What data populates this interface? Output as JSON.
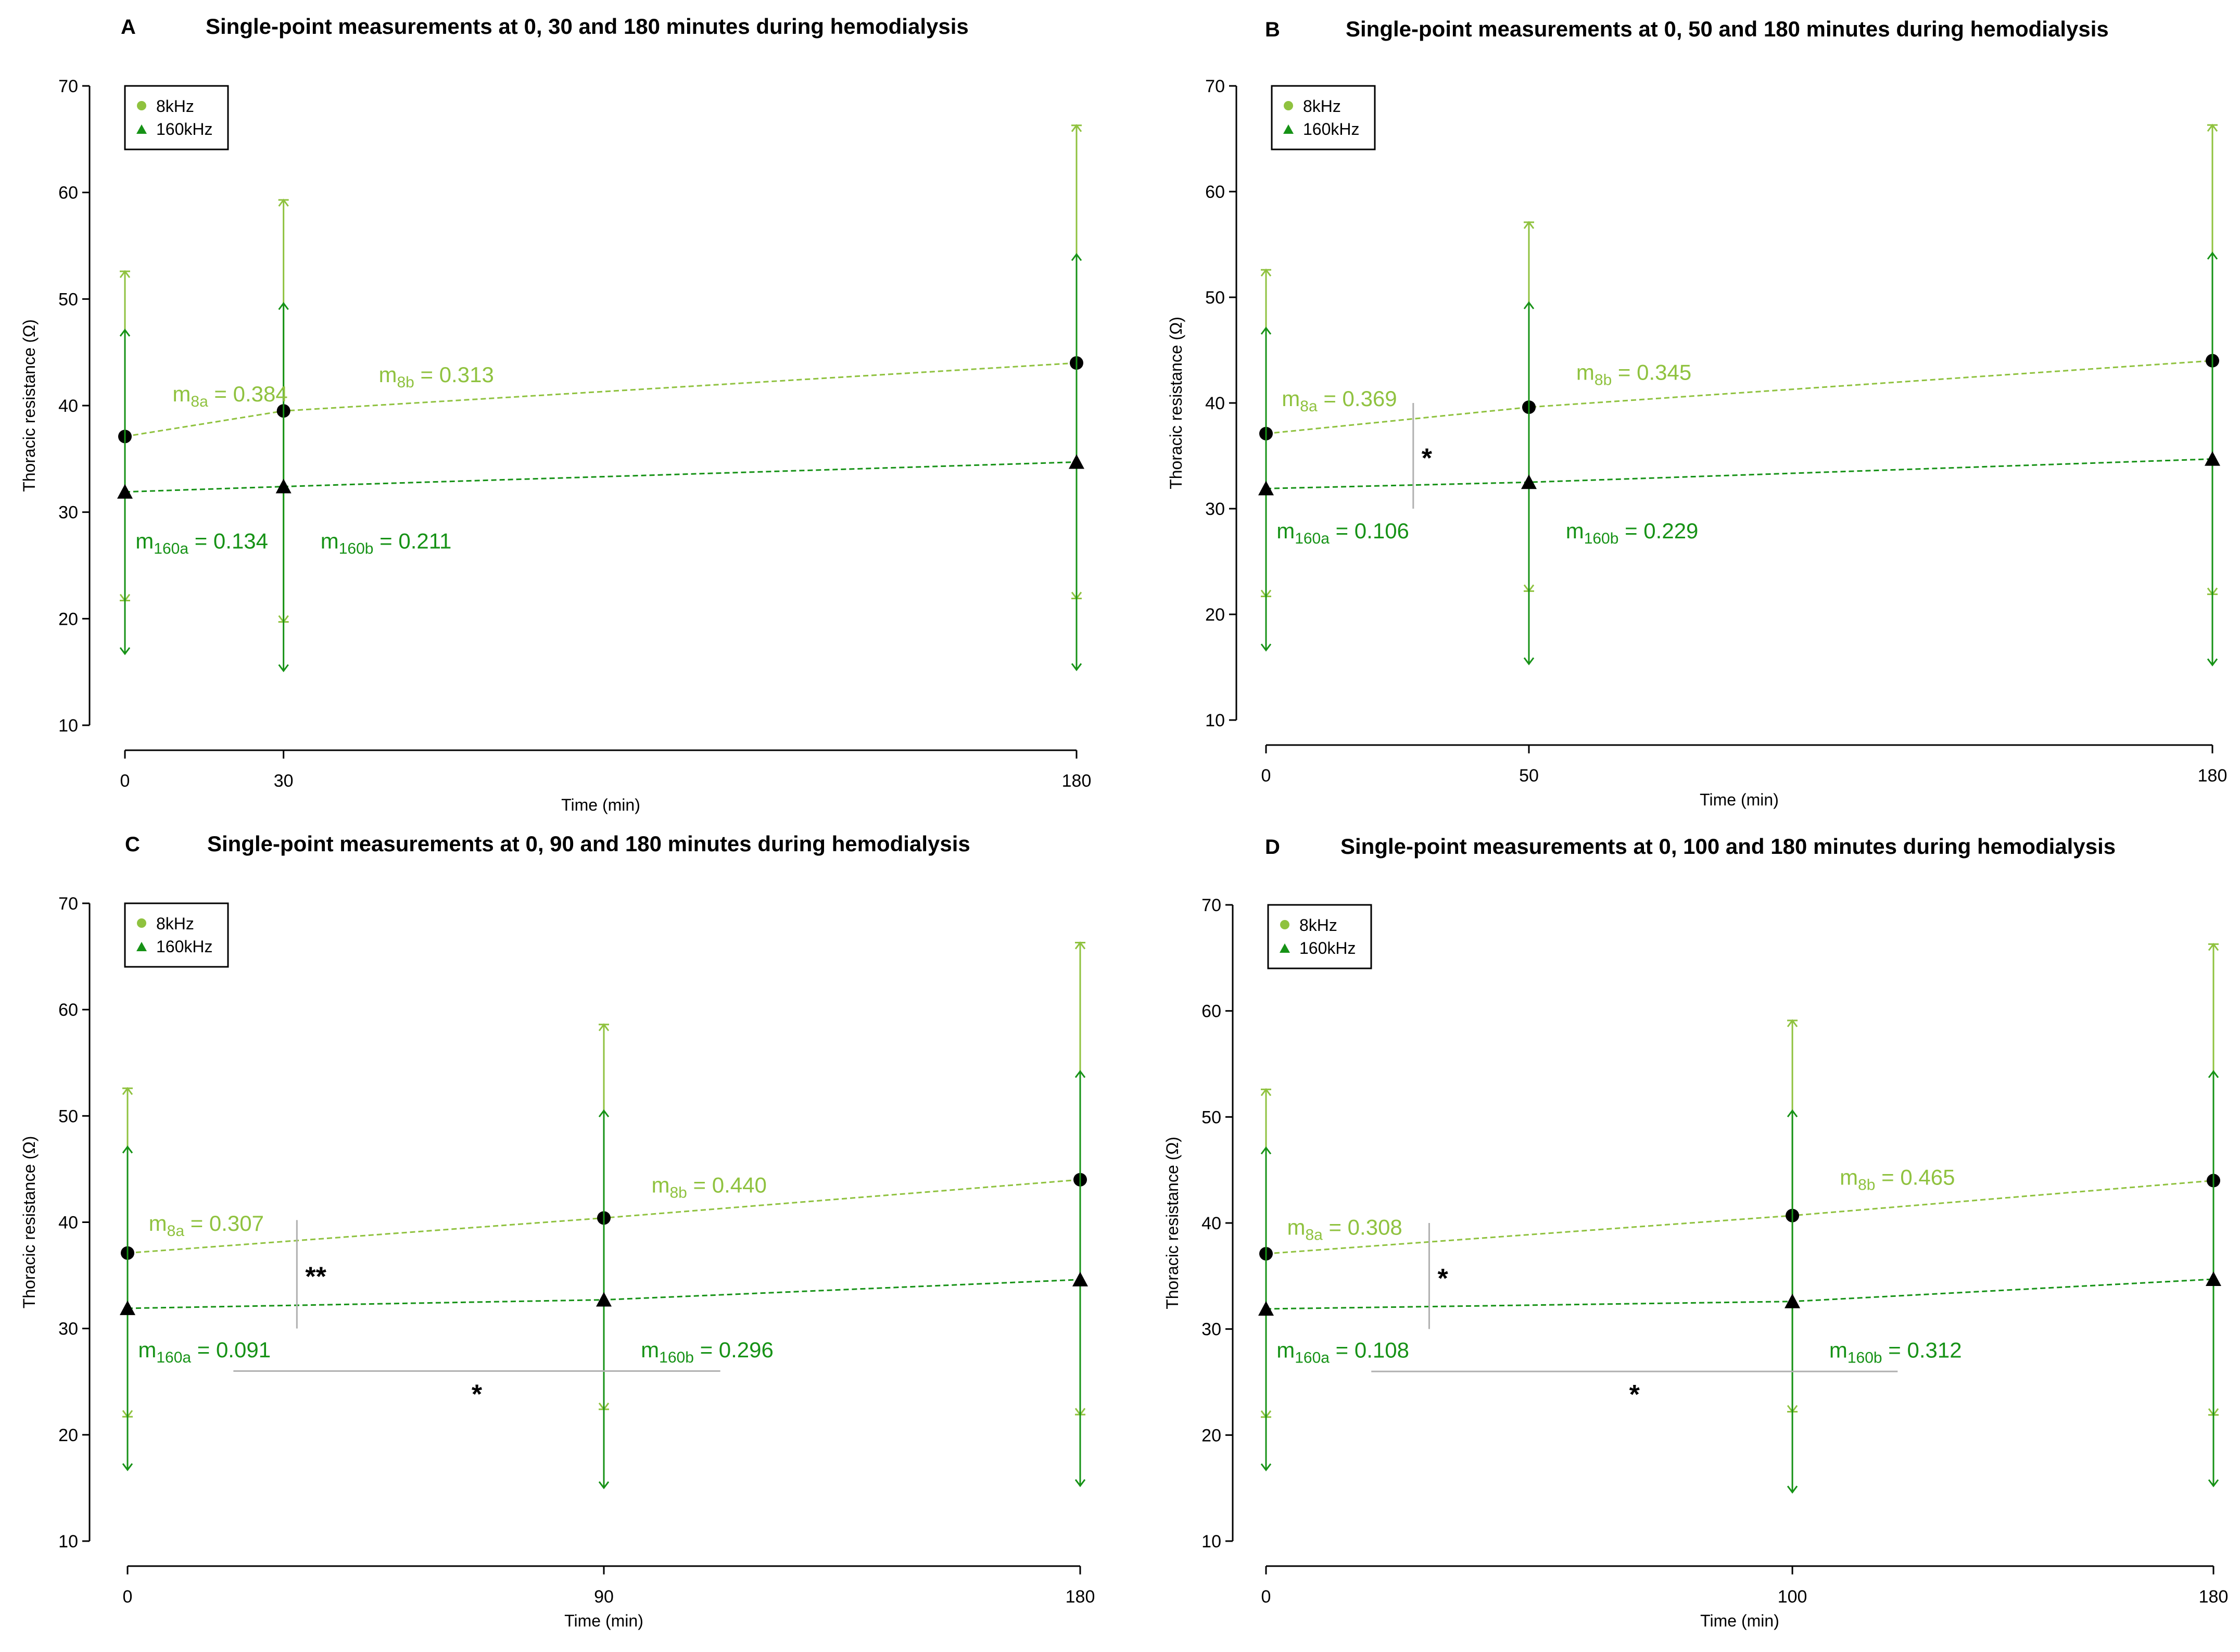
{
  "colors": {
    "light_green": "#8fc23f",
    "dark_green": "#169216",
    "marker": "#000000",
    "significance": "#b0b0b0"
  },
  "chart_data": [
    {
      "letter": "A",
      "type": "line",
      "title": "Single-point measurements at 0, 30 and 180 minutes during hemodialysis",
      "xlabel": "Time (min)",
      "ylabel": "Thoracic resistance (Ω)",
      "x": [
        0,
        30,
        180
      ],
      "xticks": [
        "0",
        "30",
        "180"
      ],
      "ylim": [
        10,
        70
      ],
      "yticks": [
        10,
        20,
        30,
        40,
        50,
        60,
        70
      ],
      "legend": [
        "8kHz",
        "160kHz"
      ],
      "series": [
        {
          "name": "8kHz",
          "marker": "circle",
          "values": [
            37.1,
            39.5,
            44.0
          ],
          "err_upper": [
            52.6,
            59.3,
            66.3
          ],
          "err_lower": [
            21.7,
            19.7,
            21.9
          ]
        },
        {
          "name": "160kHz",
          "marker": "triangle",
          "values": [
            31.9,
            32.4,
            34.7
          ],
          "err_upper": [
            47.1,
            49.6,
            54.2
          ],
          "err_lower": [
            16.7,
            15.1,
            15.2
          ]
        }
      ],
      "annotations": [
        {
          "base": "m",
          "sub": "8a",
          "value": "= 0.384",
          "color": "light",
          "x": 9,
          "y": 40.4
        },
        {
          "base": "m",
          "sub": "8b",
          "value": "= 0.313",
          "color": "light",
          "x": 48,
          "y": 42.2
        },
        {
          "base": "m",
          "sub": "160a",
          "value": "= 0.134",
          "color": "dark",
          "x": 2,
          "y": 26.6
        },
        {
          "base": "m",
          "sub": "160b",
          "value": "= 0.211",
          "color": "dark",
          "x": 37,
          "y": 26.6
        }
      ],
      "significance": []
    },
    {
      "letter": "B",
      "type": "line",
      "title": "Single-point measurements at 0, 50 and 180 minutes during hemodialysis",
      "xlabel": "Time (min)",
      "ylabel": "Thoracic resistance (Ω)",
      "x": [
        0,
        50,
        180
      ],
      "xticks": [
        "0",
        "50",
        "180"
      ],
      "ylim": [
        10,
        70
      ],
      "yticks": [
        10,
        20,
        30,
        40,
        50,
        60,
        70
      ],
      "legend": [
        "8kHz",
        "160kHz"
      ],
      "series": [
        {
          "name": "8kHz",
          "marker": "circle",
          "values": [
            37.1,
            39.6,
            44.0
          ],
          "err_upper": [
            52.6,
            57.1,
            66.3
          ],
          "err_lower": [
            21.7,
            22.2,
            21.9
          ]
        },
        {
          "name": "160kHz",
          "marker": "triangle",
          "values": [
            31.9,
            32.5,
            34.7
          ],
          "err_upper": [
            47.1,
            49.5,
            54.2
          ],
          "err_lower": [
            16.6,
            15.3,
            15.2
          ]
        }
      ],
      "annotations": [
        {
          "base": "m",
          "sub": "8a",
          "value": "= 0.369",
          "color": "light",
          "x": 3,
          "y": 39.7
        },
        {
          "base": "m",
          "sub": "8b",
          "value": "= 0.345",
          "color": "light",
          "x": 59,
          "y": 42.2
        },
        {
          "base": "m",
          "sub": "160a",
          "value": "= 0.106",
          "color": "dark",
          "x": 2,
          "y": 27.2
        },
        {
          "base": "m",
          "sub": "160b",
          "value": "= 0.229",
          "color": "dark",
          "x": 57,
          "y": 27.2
        }
      ],
      "significance": [
        {
          "type": "vertical",
          "x": 28,
          "y_from": 30,
          "y_to": 40,
          "label": "*"
        }
      ]
    },
    {
      "letter": "C",
      "type": "line",
      "title": "Single-point measurements at 0, 90 and 180 minutes during hemodialysis",
      "xlabel": "Time (min)",
      "ylabel": "Thoracic resistance (Ω)",
      "x": [
        0,
        90,
        180
      ],
      "xticks": [
        "0",
        "90",
        "180"
      ],
      "ylim": [
        10,
        70
      ],
      "yticks": [
        10,
        20,
        30,
        40,
        50,
        60,
        70
      ],
      "legend": [
        "8kHz",
        "160kHz"
      ],
      "series": [
        {
          "name": "8kHz",
          "marker": "circle",
          "values": [
            37.1,
            40.4,
            44.0
          ],
          "err_upper": [
            52.6,
            58.6,
            66.3
          ],
          "err_lower": [
            21.7,
            22.4,
            21.9
          ]
        },
        {
          "name": "160kHz",
          "marker": "triangle",
          "values": [
            31.9,
            32.7,
            34.6
          ],
          "err_upper": [
            47.1,
            50.5,
            54.2
          ],
          "err_lower": [
            16.7,
            15.0,
            15.2
          ]
        }
      ],
      "annotations": [
        {
          "base": "m",
          "sub": "8a",
          "value": "= 0.307",
          "color": "light",
          "x": 4,
          "y": 39.2
        },
        {
          "base": "m",
          "sub": "8b",
          "value": "= 0.440",
          "color": "light",
          "x": 99,
          "y": 42.8
        },
        {
          "base": "m",
          "sub": "160a",
          "value": "= 0.091",
          "color": "dark",
          "x": 2,
          "y": 27.3
        },
        {
          "base": "m",
          "sub": "160b",
          "value": "= 0.296",
          "color": "dark",
          "x": 97,
          "y": 27.3
        }
      ],
      "significance": [
        {
          "type": "vertical",
          "x": 32,
          "y_from": 30,
          "y_to": 40.2,
          "label": "**"
        },
        {
          "type": "horizontal",
          "x_from": 20,
          "x_to": 112,
          "y": 26,
          "label": "*"
        }
      ]
    },
    {
      "letter": "D",
      "type": "line",
      "title": "Single-point measurements at 0, 100 and 180 minutes during hemodialysis",
      "xlabel": "Time (min)",
      "ylabel": "Thoracic resistance (Ω)",
      "x": [
        0,
        100,
        180
      ],
      "xticks": [
        "0",
        "100",
        "180"
      ],
      "ylim": [
        10,
        70
      ],
      "yticks": [
        10,
        20,
        30,
        40,
        50,
        60,
        70
      ],
      "legend": [
        "8kHz",
        "160kHz"
      ],
      "series": [
        {
          "name": "8kHz",
          "marker": "circle",
          "values": [
            37.1,
            40.7,
            44.0
          ],
          "err_upper": [
            52.6,
            59.1,
            66.3
          ],
          "err_lower": [
            21.7,
            22.2,
            21.9
          ]
        },
        {
          "name": "160kHz",
          "marker": "triangle",
          "values": [
            31.9,
            32.6,
            34.7
          ],
          "err_upper": [
            47.1,
            50.6,
            54.3
          ],
          "err_lower": [
            16.7,
            14.6,
            15.2
          ]
        }
      ],
      "annotations": [
        {
          "base": "m",
          "sub": "8a",
          "value": "= 0.308",
          "color": "light",
          "x": 4,
          "y": 38.9
        },
        {
          "base": "m",
          "sub": "8b",
          "value": "= 0.465",
          "color": "light",
          "x": 109,
          "y": 43.6
        },
        {
          "base": "m",
          "sub": "160a",
          "value": "= 0.108",
          "color": "dark",
          "x": 2,
          "y": 27.3
        },
        {
          "base": "m",
          "sub": "160b",
          "value": "= 0.312",
          "color": "dark",
          "x": 107,
          "y": 27.3
        }
      ],
      "significance": [
        {
          "type": "vertical",
          "x": 31,
          "y_from": 30,
          "y_to": 40,
          "label": "*"
        },
        {
          "type": "horizontal",
          "x_from": 20,
          "x_to": 120,
          "y": 26,
          "label": "*"
        }
      ]
    }
  ]
}
